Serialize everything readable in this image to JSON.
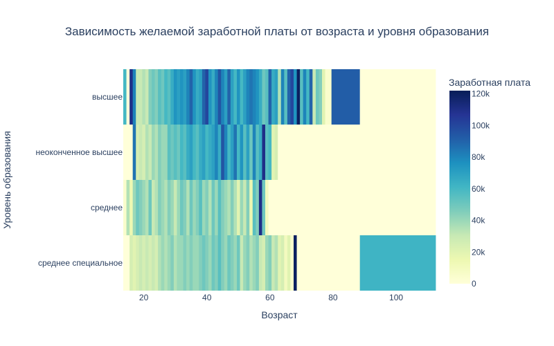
{
  "chart_data": {
    "type": "heatmap",
    "title": "Зависимость желаемой заработной платы от возраста и уровня образования",
    "xlabel": "Возраст",
    "ylabel": "Уровень образования",
    "colorbar_title": "Заработная плата",
    "xlim": [
      13.5,
      112.5
    ],
    "x_ticks": [
      20,
      40,
      60,
      80,
      100
    ],
    "x_tick_labels": [
      "20",
      "40",
      "60",
      "80",
      "100"
    ],
    "categories_y": [
      "высшее",
      "неоконченное высшее",
      "среднее",
      "среднее специальное"
    ],
    "colorscale": "YlGnBu",
    "zlim": [
      0,
      122000
    ],
    "colorbar_ticks": [
      0,
      20000,
      40000,
      60000,
      80000,
      100000,
      120000
    ],
    "colorbar_tick_labels": [
      "0",
      "20k",
      "40k",
      "60k",
      "80k",
      "100k",
      "120k"
    ],
    "rows": [
      {
        "name": "высшее",
        "segments": [
          [
            13.5,
            14.5,
            60000
          ],
          [
            14.5,
            15.5,
            0
          ],
          [
            15.5,
            16.5,
            110000
          ],
          [
            16.5,
            17.5,
            80000
          ],
          [
            17.5,
            18.5,
            30000
          ],
          [
            18.5,
            19.5,
            30000
          ],
          [
            19.5,
            20.5,
            35000
          ],
          [
            20.5,
            21.5,
            30000
          ],
          [
            21.5,
            22.5,
            45000
          ],
          [
            22.5,
            23.5,
            50000
          ],
          [
            23.5,
            24.5,
            45000
          ],
          [
            24.5,
            25.5,
            55000
          ],
          [
            25.5,
            26.5,
            50000
          ],
          [
            26.5,
            27.5,
            60000
          ],
          [
            27.5,
            28.5,
            55000
          ],
          [
            28.5,
            29.5,
            65000
          ],
          [
            29.5,
            30.5,
            75000
          ],
          [
            30.5,
            31.5,
            70000
          ],
          [
            31.5,
            32.5,
            75000
          ],
          [
            32.5,
            33.5,
            70000
          ],
          [
            33.5,
            34.5,
            80000
          ],
          [
            34.5,
            35.5,
            90000
          ],
          [
            35.5,
            36.5,
            75000
          ],
          [
            36.5,
            37.5,
            65000
          ],
          [
            37.5,
            38.5,
            70000
          ],
          [
            38.5,
            39.5,
            90000
          ],
          [
            39.5,
            40.5,
            100000
          ],
          [
            40.5,
            41.5,
            75000
          ],
          [
            41.5,
            42.5,
            65000
          ],
          [
            42.5,
            43.5,
            80000
          ],
          [
            43.5,
            44.5,
            95000
          ],
          [
            44.5,
            45.5,
            80000
          ],
          [
            45.5,
            46.5,
            70000
          ],
          [
            46.5,
            47.5,
            90000
          ],
          [
            47.5,
            48.5,
            70000
          ],
          [
            48.5,
            49.5,
            60000
          ],
          [
            49.5,
            50.5,
            75000
          ],
          [
            50.5,
            51.5,
            60000
          ],
          [
            51.5,
            52.5,
            70000
          ],
          [
            52.5,
            53.5,
            80000
          ],
          [
            53.5,
            54.5,
            85000
          ],
          [
            54.5,
            55.5,
            80000
          ],
          [
            55.5,
            56.5,
            75000
          ],
          [
            56.5,
            57.5,
            65000
          ],
          [
            57.5,
            58.5,
            50000
          ],
          [
            58.5,
            59.5,
            55000
          ],
          [
            59.5,
            60.5,
            90000
          ],
          [
            60.5,
            61.5,
            65000
          ],
          [
            61.5,
            62.5,
            70000
          ],
          [
            62.5,
            63.5,
            35000
          ],
          [
            63.5,
            64.5,
            80000
          ],
          [
            64.5,
            65.5,
            55000
          ],
          [
            65.5,
            66.5,
            90000
          ],
          [
            66.5,
            67.5,
            100000
          ],
          [
            67.5,
            68.5,
            75000
          ],
          [
            68.5,
            69.5,
            120000
          ],
          [
            69.5,
            70.5,
            55000
          ],
          [
            70.5,
            71.5,
            80000
          ],
          [
            71.5,
            72.5,
            60000
          ],
          [
            72.5,
            73.5,
            90000
          ],
          [
            73.5,
            74.5,
            30000
          ],
          [
            74.5,
            75.5,
            50000
          ],
          [
            75.5,
            76.5,
            45000
          ],
          [
            76.5,
            77.5,
            20000
          ],
          [
            77.5,
            78.5,
            5000
          ],
          [
            78.5,
            79.5,
            5000
          ],
          [
            79.5,
            88.5,
            92000
          ],
          [
            88.5,
            112.5,
            0
          ]
        ]
      },
      {
        "name": "неоконченное высшее",
        "segments": [
          [
            13.5,
            16.5,
            0
          ],
          [
            16.5,
            17.5,
            85000
          ],
          [
            17.5,
            18.5,
            25000
          ],
          [
            18.5,
            19.5,
            30000
          ],
          [
            19.5,
            20.5,
            25000
          ],
          [
            20.5,
            21.5,
            35000
          ],
          [
            21.5,
            22.5,
            30000
          ],
          [
            22.5,
            23.5,
            40000
          ],
          [
            23.5,
            24.5,
            35000
          ],
          [
            24.5,
            25.5,
            45000
          ],
          [
            25.5,
            26.5,
            40000
          ],
          [
            26.5,
            27.5,
            40000
          ],
          [
            27.5,
            28.5,
            55000
          ],
          [
            28.5,
            29.5,
            50000
          ],
          [
            29.5,
            30.5,
            55000
          ],
          [
            30.5,
            31.5,
            50000
          ],
          [
            31.5,
            32.5,
            60000
          ],
          [
            32.5,
            33.5,
            55000
          ],
          [
            33.5,
            34.5,
            65000
          ],
          [
            34.5,
            35.5,
            70000
          ],
          [
            35.5,
            36.5,
            60000
          ],
          [
            36.5,
            37.5,
            55000
          ],
          [
            37.5,
            38.5,
            65000
          ],
          [
            38.5,
            39.5,
            70000
          ],
          [
            39.5,
            40.5,
            60000
          ],
          [
            40.5,
            41.5,
            65000
          ],
          [
            41.5,
            42.5,
            70000
          ],
          [
            42.5,
            43.5,
            80000
          ],
          [
            43.5,
            44.5,
            65000
          ],
          [
            44.5,
            45.5,
            95000
          ],
          [
            45.5,
            46.5,
            80000
          ],
          [
            46.5,
            47.5,
            60000
          ],
          [
            47.5,
            48.5,
            70000
          ],
          [
            48.5,
            49.5,
            85000
          ],
          [
            49.5,
            50.5,
            60000
          ],
          [
            50.5,
            51.5,
            75000
          ],
          [
            51.5,
            52.5,
            55000
          ],
          [
            52.5,
            53.5,
            70000
          ],
          [
            53.5,
            54.5,
            50000
          ],
          [
            54.5,
            55.5,
            80000
          ],
          [
            55.5,
            56.5,
            55000
          ],
          [
            56.5,
            57.5,
            65000
          ],
          [
            57.5,
            58.5,
            110000
          ],
          [
            58.5,
            59.5,
            55000
          ],
          [
            59.5,
            60.5,
            60000
          ],
          [
            60.5,
            61.5,
            20000
          ],
          [
            61.5,
            62.5,
            25000
          ],
          [
            62.5,
            112.5,
            0
          ]
        ]
      },
      {
        "name": "среднее",
        "segments": [
          [
            13.5,
            14.5,
            5000
          ],
          [
            14.5,
            15.5,
            35000
          ],
          [
            15.5,
            16.5,
            15000
          ],
          [
            16.5,
            17.5,
            40000
          ],
          [
            17.5,
            18.5,
            50000
          ],
          [
            18.5,
            19.5,
            45000
          ],
          [
            19.5,
            20.5,
            40000
          ],
          [
            20.5,
            21.5,
            35000
          ],
          [
            21.5,
            22.5,
            50000
          ],
          [
            22.5,
            23.5,
            30000
          ],
          [
            23.5,
            24.5,
            35000
          ],
          [
            24.5,
            25.5,
            45000
          ],
          [
            25.5,
            26.5,
            40000
          ],
          [
            26.5,
            27.5,
            35000
          ],
          [
            27.5,
            28.5,
            45000
          ],
          [
            28.5,
            29.5,
            40000
          ],
          [
            29.5,
            30.5,
            30000
          ],
          [
            30.5,
            31.5,
            40000
          ],
          [
            31.5,
            32.5,
            50000
          ],
          [
            32.5,
            33.5,
            45000
          ],
          [
            33.5,
            34.5,
            35000
          ],
          [
            34.5,
            35.5,
            50000
          ],
          [
            35.5,
            36.5,
            40000
          ],
          [
            36.5,
            37.5,
            45000
          ],
          [
            37.5,
            38.5,
            55000
          ],
          [
            38.5,
            39.5,
            40000
          ],
          [
            39.5,
            40.5,
            45000
          ],
          [
            40.5,
            41.5,
            35000
          ],
          [
            41.5,
            42.5,
            50000
          ],
          [
            42.5,
            43.5,
            40000
          ],
          [
            43.5,
            44.5,
            55000
          ],
          [
            44.5,
            45.5,
            45000
          ],
          [
            45.5,
            46.5,
            40000
          ],
          [
            46.5,
            47.5,
            35000
          ],
          [
            47.5,
            48.5,
            45000
          ],
          [
            48.5,
            49.5,
            35000
          ],
          [
            49.5,
            50.5,
            20000
          ],
          [
            50.5,
            51.5,
            40000
          ],
          [
            51.5,
            52.5,
            30000
          ],
          [
            52.5,
            53.5,
            45000
          ],
          [
            53.5,
            54.5,
            15000
          ],
          [
            54.5,
            55.5,
            55000
          ],
          [
            55.5,
            56.5,
            45000
          ],
          [
            56.5,
            57.5,
            110000
          ],
          [
            57.5,
            58.5,
            50000
          ],
          [
            58.5,
            59.5,
            10000
          ],
          [
            59.5,
            112.5,
            0
          ]
        ]
      },
      {
        "name": "среднее специальное",
        "segments": [
          [
            13.5,
            15.5,
            0
          ],
          [
            15.5,
            16.5,
            25000
          ],
          [
            16.5,
            17.5,
            20000
          ],
          [
            17.5,
            18.5,
            25000
          ],
          [
            18.5,
            19.5,
            30000
          ],
          [
            19.5,
            20.5,
            25000
          ],
          [
            20.5,
            21.5,
            30000
          ],
          [
            21.5,
            22.5,
            25000
          ],
          [
            22.5,
            23.5,
            30000
          ],
          [
            23.5,
            24.5,
            25000
          ],
          [
            24.5,
            25.5,
            35000
          ],
          [
            25.5,
            26.5,
            40000
          ],
          [
            26.5,
            27.5,
            35000
          ],
          [
            27.5,
            28.5,
            40000
          ],
          [
            28.5,
            29.5,
            45000
          ],
          [
            29.5,
            30.5,
            35000
          ],
          [
            30.5,
            31.5,
            40000
          ],
          [
            31.5,
            32.5,
            40000
          ],
          [
            32.5,
            33.5,
            45000
          ],
          [
            33.5,
            34.5,
            40000
          ],
          [
            34.5,
            35.5,
            45000
          ],
          [
            35.5,
            36.5,
            40000
          ],
          [
            36.5,
            37.5,
            40000
          ],
          [
            37.5,
            38.5,
            45000
          ],
          [
            38.5,
            39.5,
            50000
          ],
          [
            39.5,
            40.5,
            45000
          ],
          [
            40.5,
            41.5,
            40000
          ],
          [
            41.5,
            42.5,
            50000
          ],
          [
            42.5,
            43.5,
            45000
          ],
          [
            43.5,
            44.5,
            55000
          ],
          [
            44.5,
            45.5,
            45000
          ],
          [
            45.5,
            46.5,
            40000
          ],
          [
            46.5,
            47.5,
            50000
          ],
          [
            47.5,
            48.5,
            45000
          ],
          [
            48.5,
            49.5,
            40000
          ],
          [
            49.5,
            50.5,
            50000
          ],
          [
            50.5,
            51.5,
            30000
          ],
          [
            51.5,
            52.5,
            40000
          ],
          [
            52.5,
            53.5,
            45000
          ],
          [
            53.5,
            54.5,
            35000
          ],
          [
            54.5,
            55.5,
            40000
          ],
          [
            55.5,
            56.5,
            45000
          ],
          [
            56.5,
            57.5,
            30000
          ],
          [
            57.5,
            58.5,
            25000
          ],
          [
            58.5,
            59.5,
            40000
          ],
          [
            59.5,
            60.5,
            45000
          ],
          [
            60.5,
            61.5,
            30000
          ],
          [
            61.5,
            62.5,
            35000
          ],
          [
            62.5,
            63.5,
            20000
          ],
          [
            63.5,
            64.5,
            25000
          ],
          [
            64.5,
            65.5,
            10000
          ],
          [
            65.5,
            66.5,
            20000
          ],
          [
            66.5,
            67.5,
            5000
          ],
          [
            67.5,
            68.5,
            120000
          ],
          [
            68.5,
            88.5,
            0
          ],
          [
            88.5,
            112.5,
            62000
          ]
        ]
      }
    ]
  }
}
